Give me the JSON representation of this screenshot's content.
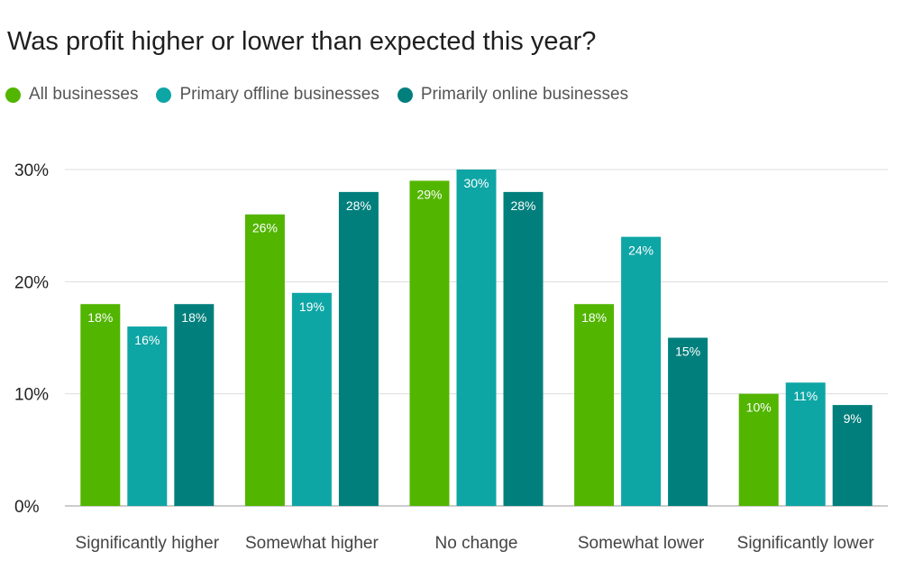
{
  "chart_data": {
    "type": "bar",
    "title": "Was profit higher or lower than expected this year?",
    "categories": [
      "Significantly higher",
      "Somewhat higher",
      "No change",
      "Somewhat lower",
      "Significantly lower"
    ],
    "series": [
      {
        "name": "All businesses",
        "color": "#52b500",
        "values": [
          18,
          26,
          29,
          18,
          10
        ]
      },
      {
        "name": "Primary offline businesses",
        "color": "#0ea5a5",
        "values": [
          16,
          19,
          30,
          24,
          11
        ]
      },
      {
        "name": "Primarily online businesses",
        "color": "#007f7c",
        "values": [
          18,
          28,
          28,
          15,
          9
        ]
      }
    ],
    "y_ticks": [
      "0%",
      "10%",
      "20%",
      "30%"
    ],
    "ylim": [
      0,
      30
    ],
    "value_suffix": "%",
    "grid": true,
    "legend_position": "top-left"
  }
}
